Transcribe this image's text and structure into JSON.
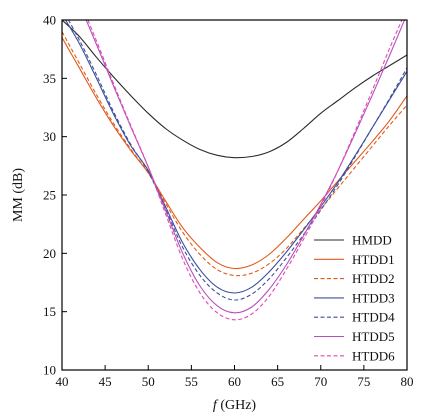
{
  "chart_data": {
    "type": "line",
    "xlabel_var": "f",
    "xlabel_unit": " (GHz)",
    "ylabel": "MM (dB)",
    "xlim": [
      40,
      80
    ],
    "ylim": [
      10,
      40
    ],
    "xticks": [
      40,
      45,
      50,
      55,
      60,
      65,
      70,
      75,
      80
    ],
    "yticks": [
      10,
      15,
      20,
      25,
      30,
      35,
      40
    ],
    "grid": false,
    "legend_position": "bottom-right",
    "series": [
      {
        "name": "HMDD",
        "color": "#2b2b2b",
        "dash": "solid",
        "x": [
          40,
          42,
          44,
          46,
          48,
          50,
          52,
          54,
          56,
          58,
          60,
          62,
          64,
          66,
          68,
          70,
          72,
          74,
          76,
          78,
          80
        ],
        "y": [
          40,
          38.6,
          36.8,
          35.1,
          33.5,
          32.0,
          30.7,
          29.7,
          28.9,
          28.4,
          28.2,
          28.3,
          28.7,
          29.5,
          30.7,
          32.0,
          33.1,
          34.2,
          35.2,
          36.1,
          37.0
        ]
      },
      {
        "name": "HTDD1",
        "color": "#e2591b",
        "dash": "solid",
        "x": [
          40,
          42,
          44,
          46,
          48,
          50,
          52,
          54,
          56,
          58,
          60,
          62,
          64,
          66,
          68,
          70,
          72,
          74,
          76,
          78,
          80
        ],
        "y": [
          38.5,
          35.9,
          33.3,
          30.9,
          28.8,
          26.9,
          24.5,
          22.2,
          20.5,
          19.2,
          18.7,
          19.0,
          19.9,
          21.3,
          22.9,
          24.5,
          26.2,
          27.9,
          29.6,
          31.4,
          33.5
        ]
      },
      {
        "name": "HTDD2",
        "color": "#e2591b",
        "dash": "dashed",
        "x": [
          40,
          42,
          44,
          46,
          48,
          50,
          52,
          54,
          56,
          58,
          60,
          62,
          64,
          66,
          68,
          70,
          72,
          74,
          76,
          78,
          80
        ],
        "y": [
          39.0,
          36.3,
          33.6,
          31.1,
          28.9,
          26.9,
          24.3,
          21.8,
          19.9,
          18.6,
          18.1,
          18.3,
          19.1,
          20.4,
          22.1,
          23.8,
          25.6,
          27.4,
          29.2,
          31.0,
          32.7
        ]
      },
      {
        "name": "HTDD3",
        "color": "#3d4f9a",
        "dash": "solid",
        "x": [
          40,
          42,
          44,
          46,
          48,
          50,
          52,
          54,
          56,
          58,
          60,
          62,
          64,
          66,
          68,
          70,
          72,
          74,
          76,
          78,
          80
        ],
        "y": [
          40.5,
          38.0,
          35.0,
          31.9,
          29.2,
          27.1,
          24.0,
          20.9,
          18.6,
          17.1,
          16.6,
          17.1,
          18.4,
          20.1,
          22.0,
          24.0,
          26.1,
          28.4,
          30.8,
          33.2,
          35.6
        ]
      },
      {
        "name": "HTDD4",
        "color": "#3d4f9a",
        "dash": "dashed",
        "x": [
          40,
          42,
          44,
          46,
          48,
          50,
          52,
          54,
          56,
          58,
          60,
          62,
          64,
          66,
          68,
          70,
          72,
          74,
          76,
          78,
          80
        ],
        "y": [
          41.0,
          38.3,
          35.3,
          32.1,
          29.3,
          27.0,
          23.8,
          20.5,
          18.1,
          16.6,
          16.0,
          16.5,
          17.8,
          19.6,
          21.6,
          23.7,
          25.9,
          28.3,
          30.8,
          33.3,
          35.9
        ]
      },
      {
        "name": "HTDD5",
        "color": "#b84fc0",
        "dash": "solid",
        "x": [
          40,
          42,
          44,
          46,
          48,
          50,
          52,
          54,
          56,
          58,
          60,
          62,
          64,
          66,
          68,
          70,
          72,
          74,
          76,
          78,
          80
        ],
        "y": [
          44.0,
          41.3,
          37.9,
          34.3,
          30.8,
          27.4,
          23.7,
          20.0,
          17.2,
          15.5,
          14.9,
          15.4,
          16.9,
          19.0,
          21.5,
          24.2,
          27.1,
          30.3,
          33.6,
          37.0,
          40.5
        ]
      },
      {
        "name": "HTDD6",
        "color": "#e04ab0",
        "dash": "dashed",
        "x": [
          40,
          42,
          44,
          46,
          48,
          50,
          52,
          54,
          56,
          58,
          60,
          62,
          64,
          66,
          68,
          70,
          72,
          74,
          76,
          78,
          80
        ],
        "y": [
          44.5,
          41.7,
          38.2,
          34.5,
          30.9,
          27.4,
          23.4,
          19.5,
          16.6,
          14.9,
          14.3,
          14.8,
          16.3,
          18.6,
          21.2,
          24.0,
          27.1,
          30.5,
          34.0,
          37.6,
          41.0
        ]
      }
    ]
  }
}
